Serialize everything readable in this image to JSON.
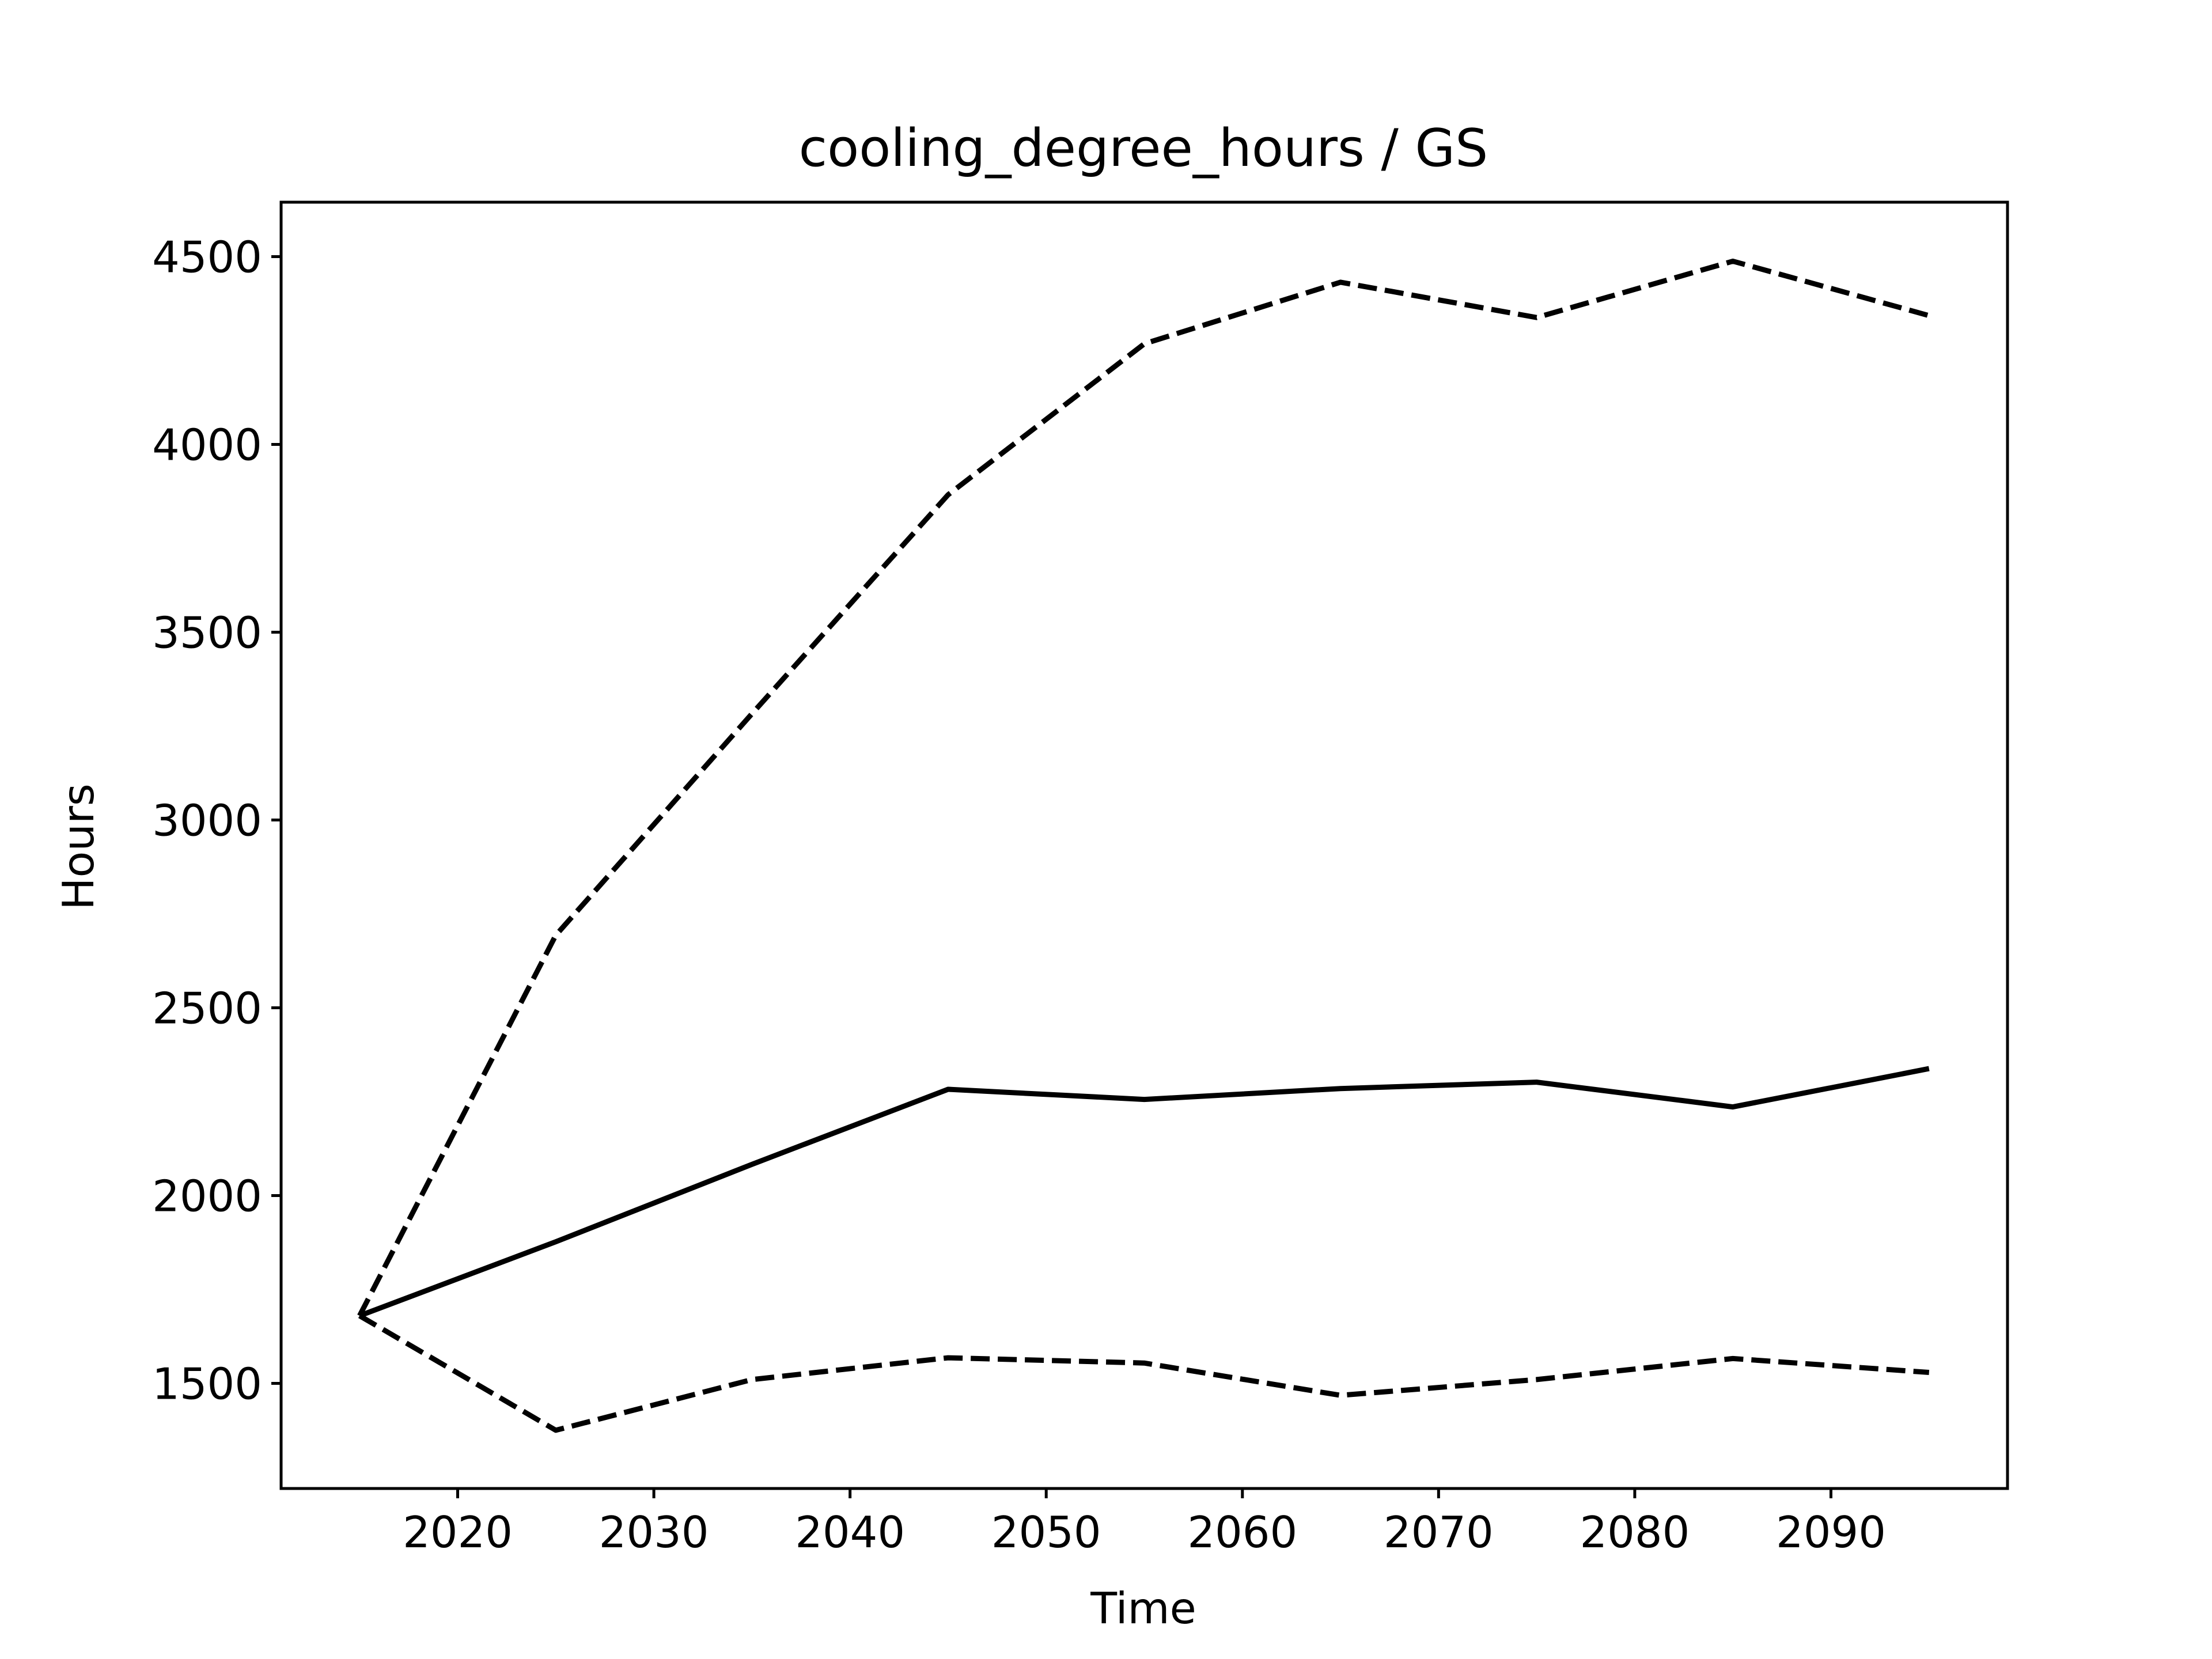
{
  "chart_data": {
    "type": "line",
    "title": "cooling_degree_hours / GS",
    "xlabel": "Time",
    "ylabel": "Hours",
    "xlim": [
      2011,
      2099
    ],
    "ylim": [
      1220,
      4645
    ],
    "xticks": [
      2020,
      2030,
      2040,
      2050,
      2060,
      2070,
      2080,
      2090
    ],
    "yticks": [
      1500,
      2000,
      2500,
      3000,
      3500,
      4000,
      4500
    ],
    "grid": false,
    "x": [
      2015,
      2025,
      2035,
      2045,
      2055,
      2065,
      2075,
      2085,
      2095
    ],
    "series": [
      {
        "values": [
          1680,
          1877,
          2083,
          2283,
          2256,
          2285,
          2302,
          2236,
          2338
        ],
        "style": "solid",
        "color": "#000000"
      },
      {
        "values": [
          1680,
          2693,
          3283,
          3866,
          4268,
          4432,
          4338,
          4488,
          4343
        ],
        "style": "dashed",
        "color": "#000000"
      },
      {
        "values": [
          1680,
          1375,
          1510,
          1568,
          1554,
          1468,
          1510,
          1566,
          1529
        ],
        "style": "dashed",
        "color": "#000000"
      }
    ]
  }
}
